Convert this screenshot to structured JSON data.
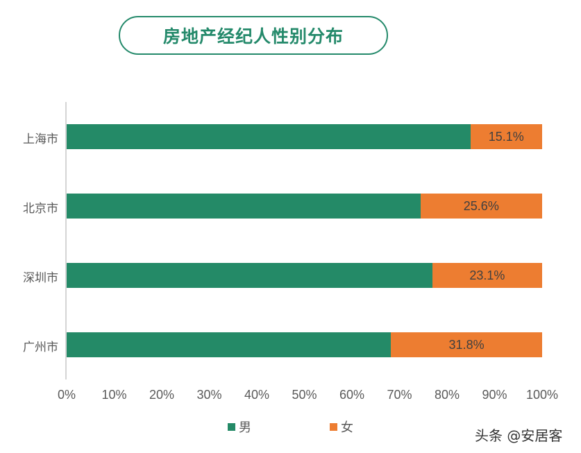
{
  "title": "房地产经纪人性别分布",
  "legend": [
    {
      "label": "男",
      "color": "#248a67"
    },
    {
      "label": "女",
      "color": "#ed7d31"
    }
  ],
  "x_ticks": [
    "0%",
    "10%",
    "20%",
    "30%",
    "40%",
    "50%",
    "60%",
    "70%",
    "80%",
    "90%",
    "100%"
  ],
  "bars": [
    {
      "city": "上海市",
      "male": 84.9,
      "female": 15.1,
      "female_label": "15.1%"
    },
    {
      "city": "北京市",
      "male": 74.4,
      "female": 25.6,
      "female_label": "25.6%"
    },
    {
      "city": "深圳市",
      "male": 76.9,
      "female": 23.1,
      "female_label": "23.1%"
    },
    {
      "city": "广州市",
      "male": 68.2,
      "female": 31.8,
      "female_label": "31.8%"
    }
  ],
  "watermark": "头条 @安居客",
  "chart_data": {
    "type": "bar",
    "orientation": "horizontal",
    "stacked": "100%",
    "title": "房地产经纪人性别分布",
    "categories": [
      "上海市",
      "北京市",
      "深圳市",
      "广州市"
    ],
    "series": [
      {
        "name": "男",
        "color": "#248a67",
        "values": [
          84.9,
          74.4,
          76.9,
          68.2
        ]
      },
      {
        "name": "女",
        "color": "#ed7d31",
        "values": [
          15.1,
          25.6,
          23.1,
          31.8
        ]
      }
    ],
    "data_labels": {
      "女": [
        "15.1%",
        "25.6%",
        "23.1%",
        "31.8%"
      ]
    },
    "xlabel": "",
    "ylabel": "",
    "xlim": [
      0,
      100
    ],
    "x_tick_labels": [
      "0%",
      "10%",
      "20%",
      "30%",
      "40%",
      "50%",
      "60%",
      "70%",
      "80%",
      "90%",
      "100%"
    ],
    "grid": false,
    "legend_position": "bottom"
  }
}
